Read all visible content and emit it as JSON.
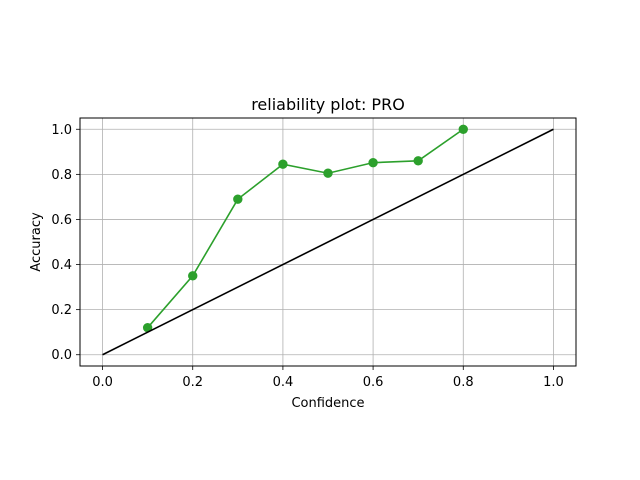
{
  "chart_data": {
    "type": "line",
    "title": "reliability plot: PRO",
    "xlabel": "Confidence",
    "ylabel": "Accuracy",
    "xlim": [
      -0.05,
      1.05
    ],
    "ylim": [
      -0.05,
      1.05
    ],
    "xticks": [
      "0.0",
      "0.2",
      "0.4",
      "0.6",
      "0.8",
      "1.0"
    ],
    "yticks": [
      "0.0",
      "0.2",
      "0.4",
      "0.6",
      "0.8",
      "1.0"
    ],
    "grid": true,
    "series": [
      {
        "x": [
          0.1,
          0.2,
          0.3,
          0.4,
          0.5,
          0.6,
          0.7,
          0.8
        ],
        "values": [
          0.12,
          0.35,
          0.69,
          0.845,
          0.805,
          0.852,
          0.86,
          1.0
        ],
        "color": "#2ca02c",
        "marker": "circle"
      },
      {
        "x": [
          0.0,
          1.0
        ],
        "values": [
          0.0,
          1.0
        ],
        "color": "#000000",
        "marker": "none"
      }
    ]
  }
}
